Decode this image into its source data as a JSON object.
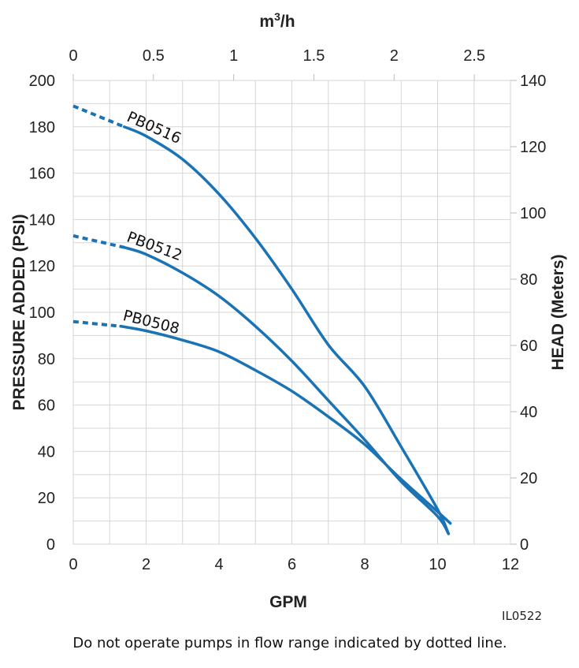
{
  "chart_data": {
    "type": "line",
    "xlabel": "GPM",
    "x2label": "m3/h",
    "ylabel": "PRESSURE ADDED (PSI)",
    "y2label": "HEAD (Meters)",
    "xlim": [
      0,
      12
    ],
    "ylim": [
      0,
      200
    ],
    "y2lim": [
      0,
      140
    ],
    "x2lim_note": "m3/h secondary axis",
    "xticks": [
      "0",
      "2",
      "4",
      "6",
      "8",
      "10",
      "12"
    ],
    "yticks": [
      "0",
      "20",
      "40",
      "60",
      "80",
      "100",
      "120",
      "140",
      "160",
      "180",
      "200"
    ],
    "x2ticks": [
      "0",
      "0.5",
      "1",
      "1.5",
      "2",
      "2.5"
    ],
    "y2ticks": [
      "0",
      "20",
      "40",
      "60",
      "80",
      "100",
      "120",
      "140"
    ],
    "grid": true,
    "dotted_until_gpm": 1.4,
    "color": "#1a73b5",
    "series": [
      {
        "name": "PB0516",
        "x": [
          0,
          1.4,
          2,
          3,
          4,
          5,
          6,
          7,
          8,
          9,
          10,
          10.3
        ],
        "y": [
          189,
          180,
          176,
          166,
          151,
          132,
          110,
          86,
          68,
          42,
          15,
          4.5
        ]
      },
      {
        "name": "PB0512",
        "x": [
          0,
          1.4,
          2,
          3,
          4,
          5,
          6,
          7,
          8,
          9,
          10,
          10.3
        ],
        "y": [
          133,
          128,
          125,
          117,
          107,
          94,
          79,
          62,
          45,
          27,
          12,
          4.5
        ]
      },
      {
        "name": "PB0508",
        "x": [
          0,
          1.3,
          2,
          3,
          4,
          5,
          6,
          7,
          8,
          9,
          10,
          10.35
        ],
        "y": [
          96,
          94,
          92,
          88,
          83,
          75,
          66,
          55,
          43,
          28,
          14,
          9
        ]
      }
    ]
  },
  "figure_code": "IL0522",
  "footnote": "Do not operate pumps in flow range indicated by dotted line."
}
